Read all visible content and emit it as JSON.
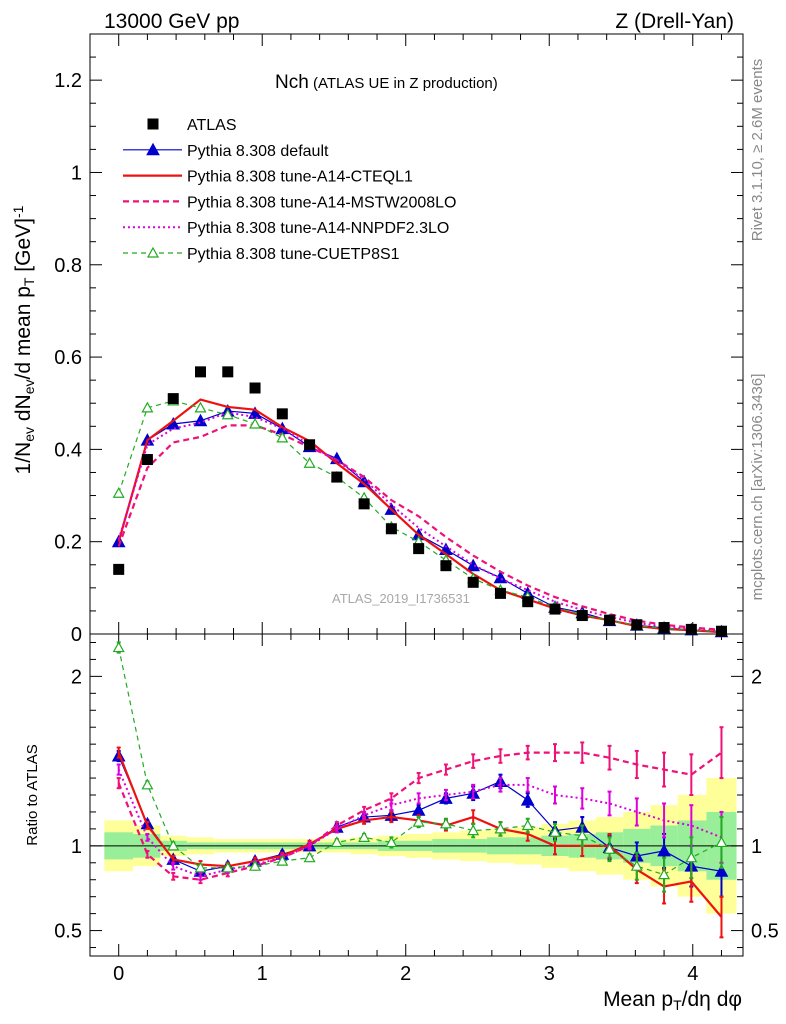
{
  "header": {
    "left": "13000 GeV pp",
    "right": "Z (Drell-Yan)"
  },
  "side_labels": {
    "rivet": "Rivet 3.1.10, ≥ 2.6M events",
    "mcplots": "mcplots.cern.ch [arXiv:1306.3436]"
  },
  "watermark": "ATLAS_2019_I1736531",
  "chart_data": [
    {
      "type": "scatter",
      "panel": "main",
      "title_main": "Nch",
      "title_sub": " (ATLAS UE in Z production)",
      "ylabel": "1/N_ev dN_ev/d mean p_T [GeV]^-1",
      "xlim": [
        -0.2,
        4.35
      ],
      "ylim": [
        0,
        1.3
      ],
      "yticks": [
        0,
        0.2,
        0.4,
        0.6,
        0.8,
        1,
        1.2
      ],
      "ytick_labels": [
        "0",
        "0.2",
        "0.4",
        "0.6",
        "0.8",
        "1",
        "1.2"
      ],
      "x": [
        0.0,
        0.2,
        0.38,
        0.57,
        0.76,
        0.95,
        1.14,
        1.33,
        1.52,
        1.71,
        1.9,
        2.09,
        2.28,
        2.47,
        2.66,
        2.85,
        3.04,
        3.23,
        3.42,
        3.61,
        3.8,
        3.99,
        4.2
      ],
      "series": [
        {
          "name": "ATLAS",
          "style": "data",
          "color": "#000000",
          "values": [
            0.14,
            0.378,
            0.51,
            0.568,
            0.568,
            0.533,
            0.477,
            0.41,
            0.34,
            0.282,
            0.228,
            0.185,
            0.148,
            0.112,
            0.088,
            0.07,
            0.054,
            0.04,
            0.03,
            0.02,
            0.014,
            0.01,
            0.006
          ]
        },
        {
          "name": "Pythia 8.308 default",
          "style": "default",
          "color": "#0000cc",
          "values": [
            0.2,
            0.42,
            0.455,
            0.462,
            0.483,
            0.478,
            0.445,
            0.406,
            0.38,
            0.33,
            0.27,
            0.215,
            0.183,
            0.148,
            0.122,
            0.088,
            0.058,
            0.046,
            0.029,
            0.019,
            0.013,
            0.009,
            0.005
          ]
        },
        {
          "name": "Pythia 8.308 tune-A14-CTEQL1",
          "style": "cteq",
          "color": "#ee1111",
          "values": [
            0.2,
            0.42,
            0.462,
            0.508,
            0.492,
            0.486,
            0.448,
            0.418,
            0.37,
            0.325,
            0.27,
            0.215,
            0.173,
            0.13,
            0.095,
            0.075,
            0.055,
            0.04,
            0.03,
            0.017,
            0.011,
            0.008,
            0.004
          ]
        },
        {
          "name": "Pythia 8.308 tune-A14-MSTW2008LO",
          "style": "mstw",
          "color": "#ee1177",
          "values": [
            0.19,
            0.36,
            0.415,
            0.427,
            0.452,
            0.452,
            0.432,
            0.405,
            0.377,
            0.34,
            0.29,
            0.255,
            0.21,
            0.17,
            0.135,
            0.105,
            0.08,
            0.06,
            0.043,
            0.029,
            0.02,
            0.014,
            0.009
          ]
        },
        {
          "name": "Pythia 8.308 tune-A14-NNPDF2.3LO",
          "style": "nnpdf",
          "color": "#dd00dd",
          "values": [
            0.205,
            0.41,
            0.445,
            0.458,
            0.48,
            0.47,
            0.445,
            0.41,
            0.375,
            0.335,
            0.28,
            0.23,
            0.19,
            0.15,
            0.12,
            0.095,
            0.07,
            0.052,
            0.037,
            0.024,
            0.016,
            0.011,
            0.006
          ]
        },
        {
          "name": "Pythia 8.308 tune-CUETP8S1",
          "style": "cuetp",
          "color": "#22aa22",
          "values": [
            0.305,
            0.49,
            0.505,
            0.49,
            0.475,
            0.455,
            0.425,
            0.37,
            0.34,
            0.295,
            0.232,
            0.2,
            0.16,
            0.12,
            0.095,
            0.08,
            0.058,
            0.042,
            0.03,
            0.018,
            0.012,
            0.009,
            0.005
          ]
        }
      ]
    },
    {
      "type": "line",
      "panel": "ratio",
      "ylabel": "Ratio to ATLAS",
      "xlabel": "Mean p_T/dη dφ",
      "xlim": [
        -0.2,
        4.35
      ],
      "ylim": [
        0.35,
        2.25
      ],
      "yticks": [
        0.5,
        1,
        2
      ],
      "ytick_labels": [
        "0.5",
        "1",
        "2"
      ],
      "xticks": [
        0,
        1,
        2,
        3,
        4
      ],
      "xtick_labels": [
        "0",
        "1",
        "2",
        "3",
        "4"
      ],
      "x": [
        0.0,
        0.2,
        0.38,
        0.57,
        0.76,
        0.95,
        1.14,
        1.33,
        1.52,
        1.71,
        1.9,
        2.09,
        2.28,
        2.47,
        2.66,
        2.85,
        3.04,
        3.23,
        3.42,
        3.61,
        3.8,
        3.99,
        4.2
      ],
      "band_yellow": [
        0.15,
        0.12,
        0.06,
        0.05,
        0.04,
        0.04,
        0.04,
        0.04,
        0.04,
        0.05,
        0.06,
        0.07,
        0.08,
        0.09,
        0.1,
        0.11,
        0.13,
        0.15,
        0.17,
        0.2,
        0.24,
        0.3,
        0.4
      ],
      "band_green": [
        0.08,
        0.07,
        0.03,
        0.02,
        0.02,
        0.02,
        0.02,
        0.02,
        0.02,
        0.02,
        0.03,
        0.03,
        0.04,
        0.04,
        0.05,
        0.05,
        0.06,
        0.07,
        0.08,
        0.1,
        0.12,
        0.15,
        0.2
      ],
      "series": [
        {
          "name": "Pythia 8.308 default",
          "style": "default",
          "color": "#0000cc",
          "values": [
            1.53,
            1.13,
            0.92,
            0.85,
            0.88,
            0.91,
            0.95,
            1.0,
            1.11,
            1.17,
            1.18,
            1.21,
            1.28,
            1.31,
            1.38,
            1.27,
            1.09,
            1.11,
            0.99,
            0.94,
            0.97,
            0.88,
            0.85
          ],
          "errors": [
            0.03,
            0.02,
            0.02,
            0.02,
            0.02,
            0.02,
            0.02,
            0.02,
            0.02,
            0.02,
            0.03,
            0.03,
            0.03,
            0.04,
            0.04,
            0.04,
            0.05,
            0.06,
            0.07,
            0.08,
            0.1,
            0.12,
            0.15
          ]
        },
        {
          "name": "Pythia 8.308 tune-A14-CTEQL1",
          "style": "cteq",
          "color": "#ee1111",
          "values": [
            1.55,
            1.12,
            0.92,
            0.89,
            0.88,
            0.91,
            0.94,
            1.01,
            1.1,
            1.15,
            1.17,
            1.15,
            1.12,
            1.17,
            1.1,
            1.07,
            1.0,
            1.0,
            1.0,
            0.86,
            0.76,
            0.79,
            0.58
          ],
          "errors": [
            0.03,
            0.02,
            0.02,
            0.02,
            0.02,
            0.02,
            0.02,
            0.02,
            0.02,
            0.02,
            0.03,
            0.03,
            0.03,
            0.04,
            0.04,
            0.04,
            0.05,
            0.06,
            0.07,
            0.08,
            0.1,
            0.12,
            0.12
          ]
        },
        {
          "name": "Pythia 8.308 tune-A14-MSTW2008LO",
          "style": "mstw",
          "color": "#ee1177",
          "values": [
            1.37,
            0.95,
            0.82,
            0.8,
            0.84,
            0.88,
            0.93,
            1.0,
            1.12,
            1.21,
            1.28,
            1.4,
            1.45,
            1.5,
            1.53,
            1.55,
            1.55,
            1.55,
            1.52,
            1.48,
            1.45,
            1.42,
            1.55
          ],
          "errors": [
            0.03,
            0.02,
            0.02,
            0.02,
            0.02,
            0.02,
            0.02,
            0.02,
            0.02,
            0.02,
            0.03,
            0.03,
            0.03,
            0.04,
            0.04,
            0.04,
            0.05,
            0.06,
            0.07,
            0.08,
            0.1,
            0.12,
            0.15
          ]
        },
        {
          "name": "Pythia 8.308 tune-A14-NNPDF2.3LO",
          "style": "nnpdf",
          "color": "#dd00dd",
          "values": [
            1.45,
            1.05,
            0.88,
            0.82,
            0.86,
            0.89,
            0.93,
            1.0,
            1.1,
            1.18,
            1.24,
            1.28,
            1.3,
            1.32,
            1.36,
            1.36,
            1.3,
            1.28,
            1.25,
            1.2,
            1.15,
            1.12,
            1.05
          ],
          "errors": [
            0.03,
            0.02,
            0.02,
            0.02,
            0.02,
            0.02,
            0.02,
            0.02,
            0.02,
            0.02,
            0.03,
            0.03,
            0.03,
            0.04,
            0.04,
            0.04,
            0.05,
            0.06,
            0.07,
            0.08,
            0.1,
            0.12,
            0.15
          ]
        },
        {
          "name": "Pythia 8.308 tune-CUETP8S1",
          "style": "cuetp",
          "color": "#22aa22",
          "values": [
            2.17,
            1.36,
            1.0,
            0.87,
            0.87,
            0.88,
            0.91,
            0.93,
            1.02,
            1.05,
            1.02,
            1.14,
            1.13,
            1.09,
            1.1,
            1.12,
            1.08,
            1.06,
            0.98,
            0.88,
            0.83,
            0.93,
            1.02
          ],
          "errors": [
            0.03,
            0.02,
            0.02,
            0.02,
            0.02,
            0.02,
            0.02,
            0.02,
            0.02,
            0.02,
            0.03,
            0.03,
            0.03,
            0.04,
            0.04,
            0.04,
            0.05,
            0.06,
            0.07,
            0.08,
            0.1,
            0.12,
            0.15
          ]
        }
      ]
    }
  ]
}
